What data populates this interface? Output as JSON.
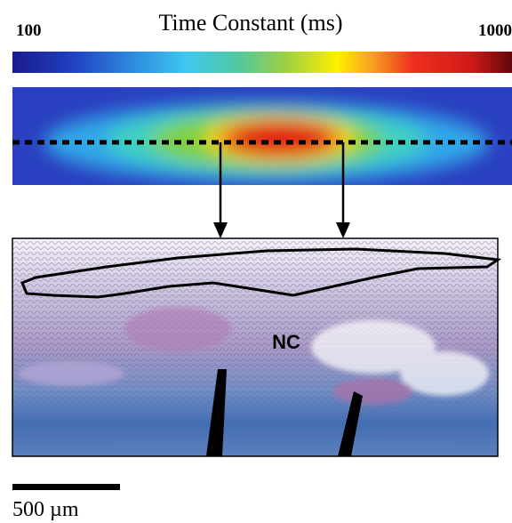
{
  "colorbar": {
    "title": "Time Constant (ms)",
    "min_label": "100",
    "max_label": "1000"
  },
  "histology": {
    "label": "NC"
  },
  "scale_bar": {
    "label": "500 µm"
  }
}
